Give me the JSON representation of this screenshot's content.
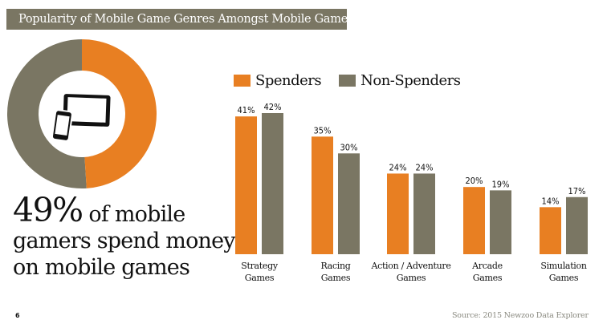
{
  "title": "Popularity of Mobile Game Genres Amongst Mobile Gamers",
  "donut": {
    "share_spenders_percent": 49,
    "colors": {
      "spenders": "#e87f22",
      "others": "#7a7663"
    },
    "center_icon": "tablet-and-phone-icon"
  },
  "headline": {
    "big": "49%",
    "rest_line1": " of mobile",
    "line2": "gamers spend money",
    "line3": "on mobile games"
  },
  "legend": {
    "spenders": "Spenders",
    "non_spenders": "Non-Spenders"
  },
  "chart_data": {
    "type": "bar",
    "categories": [
      "Strategy Games",
      "Racing Games",
      "Action / Adventure Games",
      "Arcade Games",
      "Simulation Games"
    ],
    "series": [
      {
        "name": "Spenders",
        "color": "#e87f22",
        "values": [
          41,
          35,
          24,
          20,
          14
        ],
        "labels": [
          "41%",
          "35%",
          "24%",
          "20%",
          "14%"
        ]
      },
      {
        "name": "Non-Spenders",
        "color": "#7a7663",
        "values": [
          42,
          30,
          24,
          19,
          17
        ],
        "labels": [
          "42%",
          "30%",
          "24%",
          "19%",
          "17%"
        ]
      }
    ],
    "ylim": [
      0,
      42
    ],
    "grid": false,
    "legend": "top"
  },
  "footer": {
    "page": "6",
    "source": "Source: 2015 Newzoo Data Explorer"
  }
}
